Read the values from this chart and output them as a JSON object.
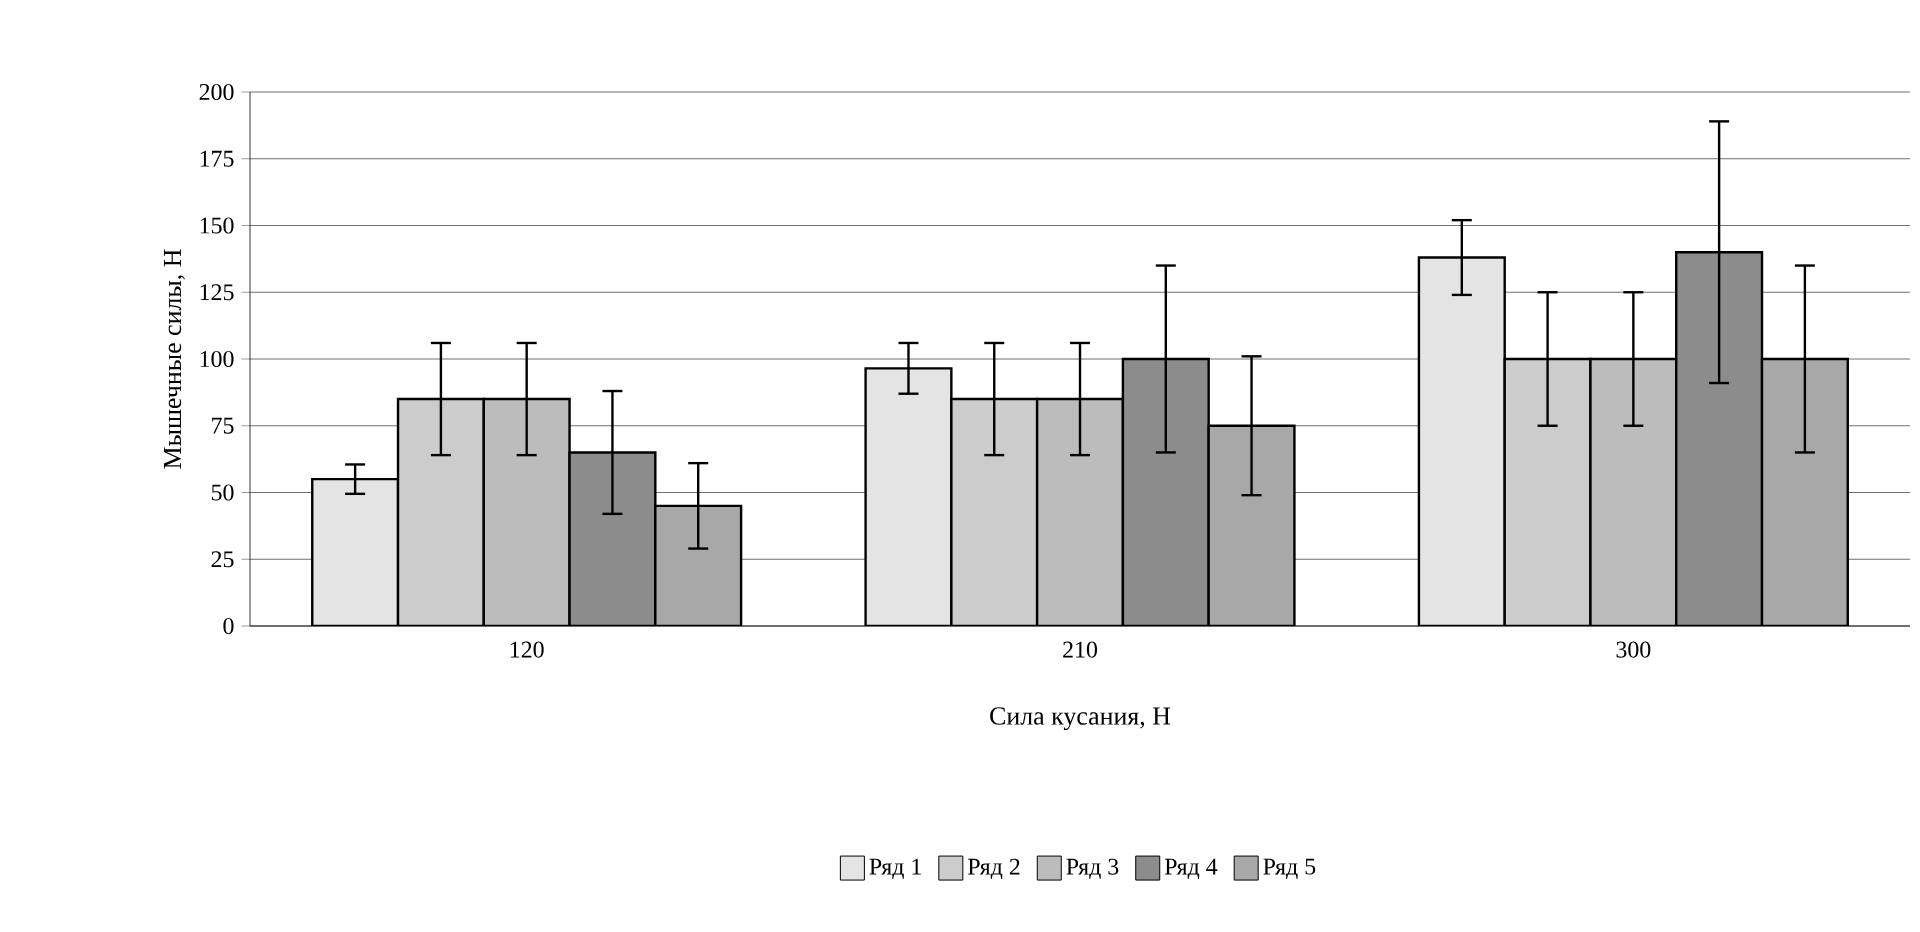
{
  "chart_data": {
    "type": "bar",
    "xlabel": "Сила кусания, Н",
    "ylabel": "Мышечные силы, Н",
    "categories": [
      "120",
      "210",
      "300"
    ],
    "series": [
      {
        "name": "Ряд 1",
        "color": "#e4e4e4",
        "values": [
          55,
          96.5,
          138
        ],
        "errors": [
          5.5,
          9.5,
          14
        ]
      },
      {
        "name": "Ряд 2",
        "color": "#cccccc",
        "values": [
          85,
          85,
          100
        ],
        "errors": [
          21,
          21,
          25
        ]
      },
      {
        "name": "Ряд 3",
        "color": "#bcbcbc",
        "values": [
          85,
          85,
          100
        ],
        "errors": [
          21,
          21,
          25
        ]
      },
      {
        "name": "Ряд 4",
        "color": "#8c8c8c",
        "values": [
          65,
          100,
          140
        ],
        "errors": [
          23,
          35,
          49
        ]
      },
      {
        "name": "Ряд 5",
        "color": "#a8a8a8",
        "values": [
          45,
          75,
          100
        ],
        "errors": [
          16,
          26,
          35
        ]
      }
    ],
    "ylim": [
      0,
      200
    ],
    "yticks": [
      0,
      25,
      50,
      75,
      100,
      125,
      150,
      175,
      200
    ],
    "grid": "y",
    "legend": "bottom"
  }
}
